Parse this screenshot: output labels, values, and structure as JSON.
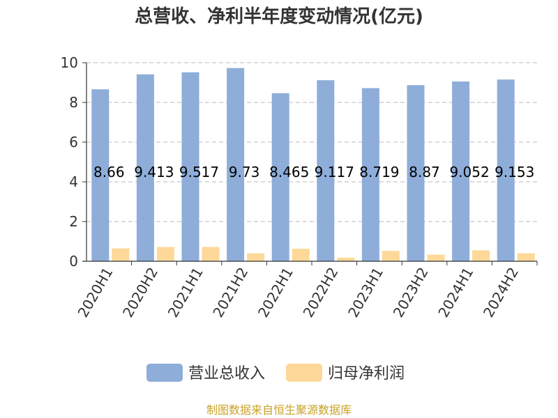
{
  "chart_data": {
    "type": "bar",
    "title": "总营收、净利半年度变动情况(亿元)",
    "categories": [
      "2020H1",
      "2020H2",
      "2021H1",
      "2021H2",
      "2022H1",
      "2022H2",
      "2023H1",
      "2023H2",
      "2024H1",
      "2024H2"
    ],
    "series": [
      {
        "name": "营业总收入",
        "color": "#8eadd9",
        "values": [
          8.66,
          9.413,
          9.517,
          9.73,
          8.465,
          9.117,
          8.719,
          8.87,
          9.052,
          9.153
        ],
        "labels": [
          "8.66",
          "9.413",
          "9.517",
          "9.73",
          "8.465",
          "9.117",
          "8.719",
          "8.87",
          "9.052",
          "9.153"
        ]
      },
      {
        "name": "归母净利润",
        "color": "#fdd898",
        "values": [
          0.65,
          0.72,
          0.72,
          0.4,
          0.63,
          0.18,
          0.52,
          0.33,
          0.55,
          0.4
        ]
      }
    ],
    "yticks": [
      "0",
      "2",
      "4",
      "6",
      "8",
      "10"
    ],
    "ylim": [
      0,
      10
    ],
    "grid": true,
    "legend_position": "bottom-center"
  },
  "source_text": "制图数据来自恒生聚源数据库"
}
